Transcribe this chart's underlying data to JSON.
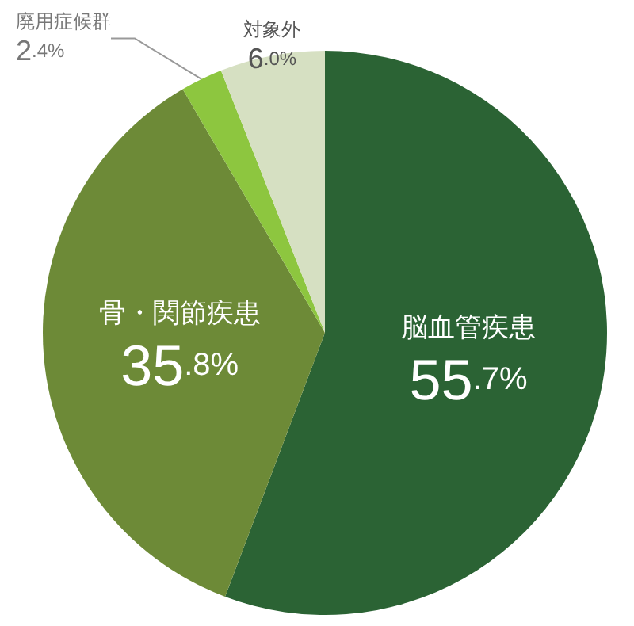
{
  "chart_data": {
    "type": "pie",
    "categories": [
      "脳血管疾患",
      "骨・関節疾患",
      "廃用症候群",
      "対象外"
    ],
    "values": [
      55.7,
      35.8,
      2.4,
      6.0
    ],
    "colors": [
      "#2b6334",
      "#6d8a37",
      "#8dc63f",
      "#d6e0c2"
    ],
    "value_labels": [
      "55.7%",
      "35.8%",
      "2.4%",
      "6.0%"
    ],
    "legend": false
  }
}
